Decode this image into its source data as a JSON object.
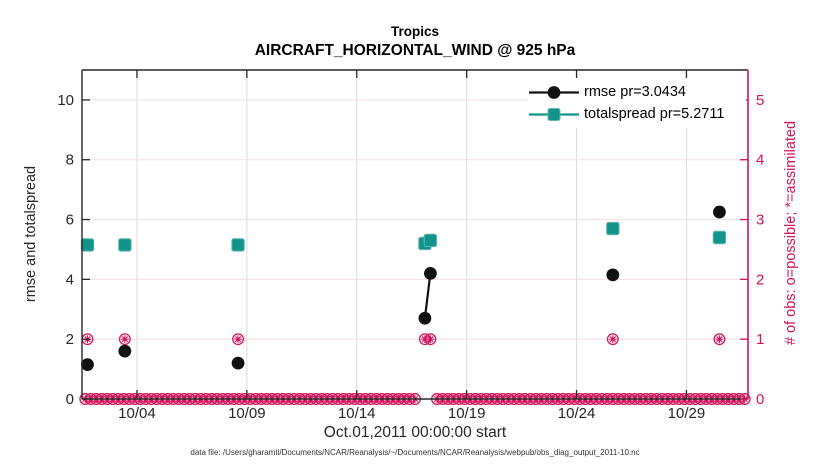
{
  "title": {
    "line1": "Tropics",
    "line2": "AIRCRAFT_HORIZONTAL_WIND @ 925 hPa"
  },
  "legend": {
    "entries": [
      {
        "label": "rmse pr=3.0434",
        "series": "rmse"
      },
      {
        "label": "totalspread pr=5.2711",
        "series": "totalspread"
      }
    ]
  },
  "footer": {
    "data_file": "data file: /Users/gharamti/Documents/NCAR/Reanalysis/~/Documents/NCAR/Reanalysis/webpub/obs_diag_output_2011-10.nc"
  },
  "colors": {
    "accent_magenta": "#d2125a",
    "teal": "#12948c",
    "black_series": "#111111",
    "grid_pink": "#f8dde8",
    "grid_gray": "#dcdcdc",
    "axis_dark": "#262626"
  },
  "chart_data": {
    "type": "line",
    "title": "Tropics",
    "subtitle": "AIRCRAFT_HORIZONTAL_WIND @ 925 hPa",
    "xlabel": "Oct.01,2011 00:00:00 start",
    "ylabel_left": "rmse and totalspread",
    "ylabel_right": "# of obs: o=possible; *=assimilated",
    "grid": true,
    "legend_position": "top-right-inside",
    "xlim_days": [
      1.5,
      31.8
    ],
    "x_ticks": [
      {
        "day": 4,
        "label": "10/04"
      },
      {
        "day": 9,
        "label": "10/09"
      },
      {
        "day": 14,
        "label": "10/14"
      },
      {
        "day": 19,
        "label": "10/19"
      },
      {
        "day": 24,
        "label": "10/24"
      },
      {
        "day": 29,
        "label": "10/29"
      }
    ],
    "ylim_left": [
      0,
      11
    ],
    "yticks_left": [
      0,
      2,
      4,
      6,
      8,
      10
    ],
    "ylim_right": [
      0,
      5.5
    ],
    "yticks_right": [
      0,
      1,
      2,
      3,
      4,
      5
    ],
    "series": [
      {
        "name": "rmse pr=3.0434",
        "marker": "filled-circle",
        "color": "#111111",
        "x_days": [
          1.75,
          3.45,
          8.6,
          17.1,
          17.35,
          25.65,
          30.5
        ],
        "values": [
          1.15,
          1.6,
          1.2,
          2.7,
          4.2,
          4.15,
          6.25
        ],
        "connect_indices": [
          [
            3,
            4
          ]
        ]
      },
      {
        "name": "totalspread pr=5.2711",
        "marker": "filled-square",
        "color": "#12948c",
        "x_days": [
          1.75,
          3.45,
          8.6,
          17.1,
          17.35,
          25.65,
          30.5
        ],
        "values": [
          5.15,
          5.15,
          5.15,
          5.2,
          5.3,
          5.7,
          5.4
        ],
        "connect_indices": [
          [
            3,
            4
          ]
        ]
      }
    ],
    "obs_counts_right_axis": {
      "marker": "circled-asterisk",
      "color": "#d2125a",
      "x_days": [
        1.75,
        3.45,
        8.6,
        17.1,
        17.35,
        25.65,
        30.5
      ],
      "values": [
        1,
        1,
        1,
        1,
        1,
        1,
        1
      ],
      "zero_row": {
        "start_day": 1.65,
        "end_day": 31.65,
        "step_day": 0.25,
        "value": 0,
        "gap_days": [
          [
            16.8,
            17.5
          ]
        ]
      }
    }
  }
}
